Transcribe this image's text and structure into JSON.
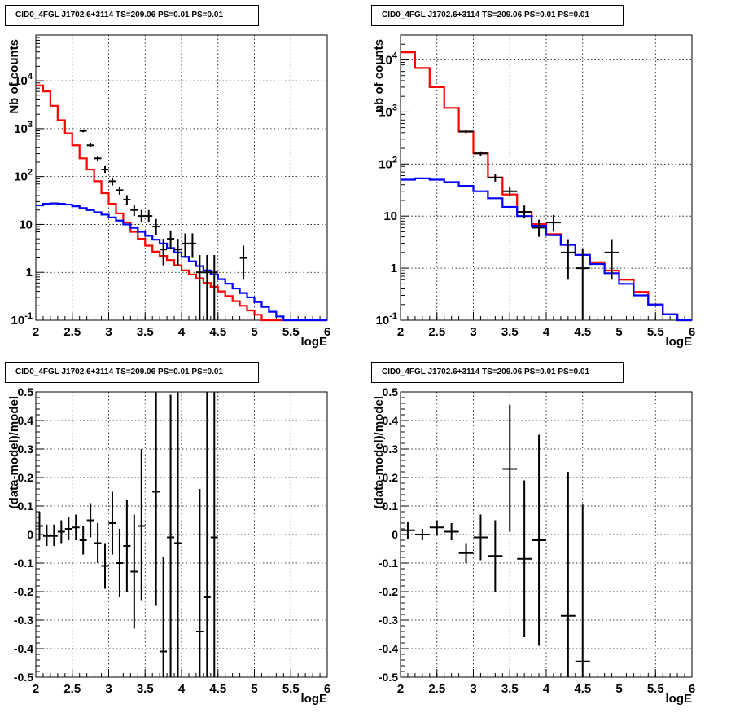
{
  "chart_data": [
    {
      "type": "histogram-with-errorbars",
      "title": "CID0_4FGL J1702.6+3114 TS=209.06 PS=0.01 PS=0.01",
      "xlabel": "logE",
      "ylabel": "Nb of counts",
      "xlim": [
        2,
        6
      ],
      "ylim": [
        0.1,
        90000
      ],
      "yscale": "log",
      "grid": true,
      "xticks": [
        "2",
        "2.5",
        "3",
        "3.5",
        "4",
        "4.5",
        "5",
        "5.5",
        "6"
      ],
      "yticks": [
        {
          "v": 0.1,
          "base": "10",
          "exp": "-1"
        },
        {
          "v": 1,
          "label": "1"
        },
        {
          "v": 10,
          "label": "10"
        },
        {
          "v": 100,
          "base": "10",
          "exp": "2"
        },
        {
          "v": 1000,
          "base": "10",
          "exp": "3"
        },
        {
          "v": 10000,
          "base": "10",
          "exp": "4"
        }
      ],
      "bin_width": 0.1,
      "series": [
        {
          "color": "#ff0000",
          "style": "step",
          "x0": 2.0,
          "values": [
            8000,
            6000,
            3000,
            1500,
            800,
            450,
            240,
            140,
            80,
            45,
            27,
            17,
            11,
            7,
            5,
            3.6,
            2.7,
            2.2,
            1.8,
            1.4,
            1.1,
            0.9,
            0.75,
            0.6,
            0.5,
            0.4,
            0.32,
            0.25,
            0.2,
            0.16,
            0.13,
            0.1,
            0.1,
            0.1,
            0.1,
            0.1,
            0.1,
            0.1,
            0.1,
            0.1
          ]
        },
        {
          "color": "#0000ff",
          "style": "step",
          "x0": 2.0,
          "values": [
            25,
            27,
            27.5,
            27,
            26,
            24,
            22,
            20,
            18,
            16,
            14,
            12,
            10,
            8.5,
            7,
            5.8,
            4.8,
            4,
            3.2,
            2.6,
            2.1,
            1.7,
            1.35,
            1.1,
            0.9,
            0.72,
            0.58,
            0.46,
            0.37,
            0.3,
            0.24,
            0.19,
            0.15,
            0.12,
            0.1,
            0.1,
            0.1,
            0.1,
            0.1,
            0.1
          ]
        }
      ],
      "points": [
        {
          "x": 2.65,
          "y": 900,
          "lo": 840,
          "hi": 960
        },
        {
          "x": 2.75,
          "y": 450,
          "lo": 410,
          "hi": 490
        },
        {
          "x": 2.85,
          "y": 240,
          "lo": 210,
          "hi": 270
        },
        {
          "x": 2.95,
          "y": 140,
          "lo": 120,
          "hi": 165
        },
        {
          "x": 3.05,
          "y": 80,
          "lo": 65,
          "hi": 95
        },
        {
          "x": 3.15,
          "y": 52,
          "lo": 42,
          "hi": 62
        },
        {
          "x": 3.25,
          "y": 33,
          "lo": 26,
          "hi": 41
        },
        {
          "x": 3.35,
          "y": 20,
          "lo": 15,
          "hi": 26
        },
        {
          "x": 3.45,
          "y": 15,
          "lo": 11,
          "hi": 20
        },
        {
          "x": 3.55,
          "y": 15,
          "lo": 11,
          "hi": 20
        },
        {
          "x": 3.65,
          "y": 9,
          "lo": 6,
          "hi": 13
        },
        {
          "x": 3.75,
          "y": 3,
          "lo": 1.4,
          "hi": 5
        },
        {
          "x": 3.85,
          "y": 5,
          "lo": 3,
          "hi": 7.5
        },
        {
          "x": 3.95,
          "y": 3,
          "lo": 1.4,
          "hi": 5
        },
        {
          "x": 4.05,
          "y": 4,
          "lo": 2,
          "hi": 6.5
        },
        {
          "x": 4.15,
          "y": 4,
          "lo": 2,
          "hi": 6.5
        },
        {
          "x": 4.25,
          "y": 1,
          "lo": 0.1,
          "hi": 2.3
        },
        {
          "x": 4.35,
          "y": 1,
          "lo": 0.1,
          "hi": 2.3
        },
        {
          "x": 4.45,
          "y": 1,
          "lo": 0.1,
          "hi": 2.3
        },
        {
          "x": 4.85,
          "y": 2,
          "lo": 0.7,
          "hi": 3.6
        }
      ]
    },
    {
      "type": "histogram-with-errorbars",
      "title": "CID0_4FGL J1702.6+3114 TS=209.06 PS=0.01 PS=0.01",
      "xlabel": "logE",
      "ylabel": "nb of counts",
      "xlim": [
        2,
        6
      ],
      "ylim": [
        0.1,
        30000
      ],
      "yscale": "log",
      "grid": true,
      "xticks": [
        "2",
        "2.5",
        "3",
        "3.5",
        "4",
        "4.5",
        "5",
        "5.5",
        "6"
      ],
      "yticks": [
        {
          "v": 0.1,
          "base": "10",
          "exp": "-1"
        },
        {
          "v": 1,
          "label": "1"
        },
        {
          "v": 10,
          "label": "10"
        },
        {
          "v": 100,
          "base": "10",
          "exp": "2"
        },
        {
          "v": 1000,
          "base": "10",
          "exp": "3"
        },
        {
          "v": 10000,
          "base": "10",
          "exp": "4"
        }
      ],
      "bin_width": 0.2,
      "series": [
        {
          "color": "#ff0000",
          "style": "step",
          "x0": 2.0,
          "values": [
            14000,
            7000,
            3000,
            1200,
            420,
            160,
            55,
            26,
            12,
            7,
            4.5,
            2.8,
            1.8,
            1.3,
            0.9,
            0.6,
            0.35,
            0.2,
            0.13,
            0.1
          ]
        },
        {
          "color": "#0000ff",
          "style": "step",
          "x0": 2.0,
          "values": [
            50,
            53,
            50,
            45,
            38,
            30,
            22,
            15,
            10,
            6.5,
            4.3,
            2.8,
            1.8,
            1.2,
            0.8,
            0.5,
            0.3,
            0.2,
            0.13,
            0.1
          ]
        }
      ],
      "points": [
        {
          "x": 2.9,
          "y": 420,
          "lo": 390,
          "hi": 450
        },
        {
          "x": 3.1,
          "y": 160,
          "lo": 145,
          "hi": 175
        },
        {
          "x": 3.3,
          "y": 55,
          "lo": 46,
          "hi": 64
        },
        {
          "x": 3.5,
          "y": 30,
          "lo": 24,
          "hi": 36
        },
        {
          "x": 3.7,
          "y": 12,
          "lo": 9,
          "hi": 16
        },
        {
          "x": 3.9,
          "y": 6,
          "lo": 4,
          "hi": 8.5
        },
        {
          "x": 4.1,
          "y": 7.5,
          "lo": 5,
          "hi": 10.5
        },
        {
          "x": 4.3,
          "y": 2,
          "lo": 0.6,
          "hi": 3.6
        },
        {
          "x": 4.5,
          "y": 1,
          "lo": 0.1,
          "hi": 2.3
        },
        {
          "x": 4.9,
          "y": 2,
          "lo": 0.6,
          "hi": 3.6
        }
      ]
    },
    {
      "type": "residuals",
      "title": "CID0_4FGL J1702.6+3114 TS=209.06 PS=0.01 PS=0.01",
      "xlabel": "logE",
      "ylabel": "(data-model)/model",
      "xlim": [
        2,
        6
      ],
      "ylim": [
        -0.5,
        0.5
      ],
      "yscale": "linear",
      "grid": true,
      "xticks": [
        "2",
        "2.5",
        "3",
        "3.5",
        "4",
        "4.5",
        "5",
        "5.5",
        "6"
      ],
      "yticks": [
        "-0.5",
        "-0.4",
        "-0.3",
        "-0.2",
        "-0.1",
        "0",
        "0.1",
        "0.2",
        "0.3",
        "0.4",
        "0.5"
      ],
      "bin_width": 0.1,
      "points": [
        {
          "x": 2.05,
          "y": 0.03,
          "lo": -0.02,
          "hi": 0.08
        },
        {
          "x": 2.15,
          "y": -0.005,
          "lo": -0.04,
          "hi": 0.035
        },
        {
          "x": 2.25,
          "y": -0.005,
          "lo": -0.04,
          "hi": 0.035
        },
        {
          "x": 2.35,
          "y": 0.01,
          "lo": -0.03,
          "hi": 0.05
        },
        {
          "x": 2.45,
          "y": 0.02,
          "lo": -0.02,
          "hi": 0.06
        },
        {
          "x": 2.55,
          "y": 0.025,
          "lo": -0.02,
          "hi": 0.07
        },
        {
          "x": 2.65,
          "y": -0.02,
          "lo": -0.07,
          "hi": 0.03
        },
        {
          "x": 2.75,
          "y": 0.05,
          "lo": -0.01,
          "hi": 0.11
        },
        {
          "x": 2.85,
          "y": -0.03,
          "lo": -0.1,
          "hi": 0.04
        },
        {
          "x": 2.95,
          "y": -0.11,
          "lo": -0.19,
          "hi": -0.03
        },
        {
          "x": 3.05,
          "y": 0.04,
          "lo": -0.07,
          "hi": 0.15
        },
        {
          "x": 3.15,
          "y": -0.1,
          "lo": -0.22,
          "hi": 0.02
        },
        {
          "x": 3.25,
          "y": -0.04,
          "lo": -0.2,
          "hi": 0.12
        },
        {
          "x": 3.35,
          "y": -0.13,
          "lo": -0.33,
          "hi": 0.07
        },
        {
          "x": 3.45,
          "y": 0.03,
          "lo": -0.23,
          "hi": 0.3
        },
        {
          "x": 3.65,
          "y": 0.15,
          "lo": -0.25,
          "hi": 0.5
        },
        {
          "x": 3.75,
          "y": -0.41,
          "lo": -0.5,
          "hi": -0.08
        },
        {
          "x": 3.85,
          "y": -0.01,
          "lo": -0.5,
          "hi": 0.49
        },
        {
          "x": 3.95,
          "y": -0.03,
          "lo": -0.5,
          "hi": 0.5
        },
        {
          "x": 4.25,
          "y": -0.34,
          "lo": -0.5,
          "hi": 0.16
        },
        {
          "x": 4.35,
          "y": -0.22,
          "lo": -0.5,
          "hi": 0.5
        },
        {
          "x": 4.45,
          "y": -0.01,
          "lo": -0.5,
          "hi": 0.5
        }
      ]
    },
    {
      "type": "residuals",
      "title": "CID0_4FGL J1702.6+3114 TS=209.06 PS=0.01 PS=0.01",
      "xlabel": "logE",
      "ylabel": "(data-model)/model",
      "xlim": [
        2,
        6
      ],
      "ylim": [
        -0.5,
        0.5
      ],
      "yscale": "linear",
      "grid": true,
      "xticks": [
        "2",
        "2.5",
        "3",
        "3.5",
        "4",
        "4.5",
        "5",
        "5.5",
        "6"
      ],
      "yticks": [
        "-0.5",
        "-0.4",
        "-0.3",
        "-0.2",
        "-0.1",
        "0",
        "0.1",
        "0.2",
        "0.3",
        "0.4",
        "0.5"
      ],
      "bin_width": 0.2,
      "points": [
        {
          "x": 2.1,
          "y": 0.015,
          "lo": -0.015,
          "hi": 0.045
        },
        {
          "x": 2.3,
          "y": 0.0,
          "lo": -0.02,
          "hi": 0.02
        },
        {
          "x": 2.5,
          "y": 0.025,
          "lo": 0.0,
          "hi": 0.05
        },
        {
          "x": 2.7,
          "y": 0.01,
          "lo": -0.02,
          "hi": 0.04
        },
        {
          "x": 2.9,
          "y": -0.065,
          "lo": -0.1,
          "hi": -0.03
        },
        {
          "x": 3.1,
          "y": -0.01,
          "lo": -0.09,
          "hi": 0.07
        },
        {
          "x": 3.3,
          "y": -0.075,
          "lo": -0.2,
          "hi": 0.05
        },
        {
          "x": 3.5,
          "y": 0.23,
          "lo": 0.01,
          "hi": 0.455
        },
        {
          "x": 3.7,
          "y": -0.085,
          "lo": -0.36,
          "hi": 0.19
        },
        {
          "x": 3.9,
          "y": -0.02,
          "lo": -0.39,
          "hi": 0.35
        },
        {
          "x": 4.3,
          "y": -0.285,
          "lo": -0.5,
          "hi": 0.22
        },
        {
          "x": 4.5,
          "y": -0.445,
          "lo": -0.5,
          "hi": 0.105
        }
      ]
    }
  ]
}
